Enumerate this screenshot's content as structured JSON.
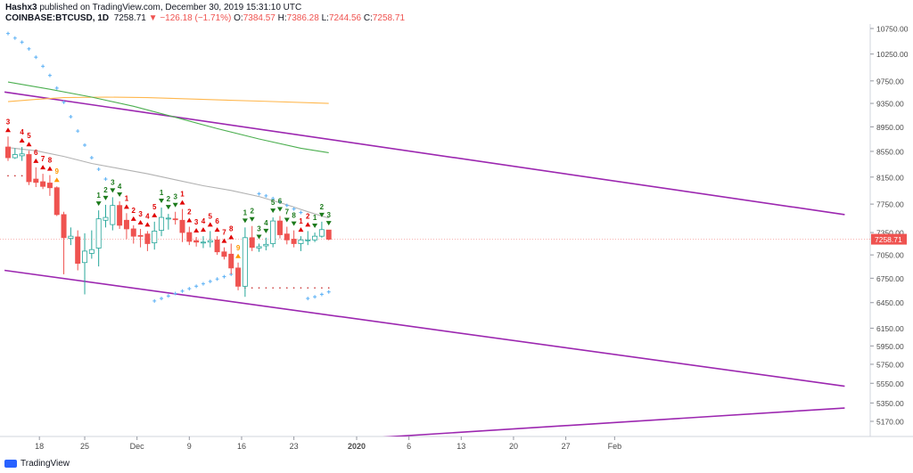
{
  "header": {
    "author": "Hashx3",
    "published_text": " published on TradingView.com, December 30, 2019 15:31:10 UTC",
    "symbol": "COINBASE:BTCUSD, 1D",
    "last": "7258.71",
    "change": "−126.18 (−1.71%)",
    "o_label": "O:",
    "o": "7384.57",
    "h_label": "H:",
    "h": "7386.28",
    "l_label": "L:",
    "l": "7244.56",
    "c_label": "C:",
    "c": "7258.71"
  },
  "footer": {
    "logo_text": "TradingView"
  },
  "colors": {
    "up": "#ffffff",
    "down": "#ef5350",
    "up_border": "#26a69a",
    "channel": "#9c27b0",
    "sar": "#64b5f6",
    "ma_gray": "#b2b2b2",
    "ma_green": "#4caf50",
    "ma_orange": "#ffb74d",
    "td_red": "#e00000",
    "td_green": "#1b7a1b",
    "td_orange": "#ff9800"
  },
  "chart_data": {
    "type": "candlestick",
    "y_scale": "log",
    "y_ticks": [
      "10750.00",
      "10250.00",
      "9750.00",
      "9350.00",
      "8950.00",
      "8550.00",
      "8150.00",
      "7750.00",
      "7350.00",
      "7050.00",
      "6750.00",
      "6450.00",
      "6150.00",
      "5950.00",
      "5750.00",
      "5550.00",
      "5350.00",
      "5170.00"
    ],
    "x_ticks": [
      "18",
      "25",
      "Dec",
      "9",
      "16",
      "23",
      "2020",
      "6",
      "13",
      "20",
      "27",
      "Feb"
    ],
    "last_price_label": "7258.71",
    "candles": [
      {
        "o": 8620,
        "h": 8790,
        "l": 8400,
        "c": 8450
      },
      {
        "o": 8450,
        "h": 8600,
        "l": 8430,
        "c": 8500
      },
      {
        "o": 8480,
        "h": 8620,
        "l": 8400,
        "c": 8510
      },
      {
        "o": 8500,
        "h": 8560,
        "l": 8030,
        "c": 8080
      },
      {
        "o": 8120,
        "h": 8300,
        "l": 8000,
        "c": 8070
      },
      {
        "o": 8080,
        "h": 8200,
        "l": 7970,
        "c": 8010
      },
      {
        "o": 8060,
        "h": 8180,
        "l": 7870,
        "c": 7990
      },
      {
        "o": 7990,
        "h": 8010,
        "l": 7580,
        "c": 7600
      },
      {
        "o": 7600,
        "h": 7640,
        "l": 6800,
        "c": 7280
      },
      {
        "o": 7270,
        "h": 7420,
        "l": 7180,
        "c": 7300
      },
      {
        "o": 7290,
        "h": 7380,
        "l": 6850,
        "c": 6940
      },
      {
        "o": 6950,
        "h": 7340,
        "l": 6550,
        "c": 7100
      },
      {
        "o": 7070,
        "h": 7380,
        "l": 7000,
        "c": 7120
      },
      {
        "o": 7140,
        "h": 7660,
        "l": 6900,
        "c": 7540
      },
      {
        "o": 7520,
        "h": 7740,
        "l": 7420,
        "c": 7560
      },
      {
        "o": 7460,
        "h": 7850,
        "l": 7380,
        "c": 7730
      },
      {
        "o": 7730,
        "h": 7790,
        "l": 7400,
        "c": 7450
      },
      {
        "o": 7520,
        "h": 7620,
        "l": 7260,
        "c": 7400
      },
      {
        "o": 7400,
        "h": 7450,
        "l": 7200,
        "c": 7300
      },
      {
        "o": 7310,
        "h": 7400,
        "l": 7150,
        "c": 7300
      },
      {
        "o": 7330,
        "h": 7370,
        "l": 7100,
        "c": 7200
      },
      {
        "o": 7210,
        "h": 7500,
        "l": 7120,
        "c": 7370
      },
      {
        "o": 7380,
        "h": 7700,
        "l": 7300,
        "c": 7560
      },
      {
        "o": 7540,
        "h": 7610,
        "l": 7390,
        "c": 7550
      },
      {
        "o": 7540,
        "h": 7640,
        "l": 7460,
        "c": 7530
      },
      {
        "o": 7520,
        "h": 7680,
        "l": 7220,
        "c": 7350
      },
      {
        "o": 7350,
        "h": 7430,
        "l": 7180,
        "c": 7230
      },
      {
        "o": 7240,
        "h": 7290,
        "l": 7160,
        "c": 7220
      },
      {
        "o": 7220,
        "h": 7300,
        "l": 7140,
        "c": 7220
      },
      {
        "o": 7220,
        "h": 7370,
        "l": 7150,
        "c": 7240
      },
      {
        "o": 7250,
        "h": 7300,
        "l": 7050,
        "c": 7090
      },
      {
        "o": 7090,
        "h": 7150,
        "l": 6990,
        "c": 7030
      },
      {
        "o": 7060,
        "h": 7200,
        "l": 6800,
        "c": 6880
      },
      {
        "o": 6880,
        "h": 6950,
        "l": 6600,
        "c": 6650
      },
      {
        "o": 6650,
        "h": 7420,
        "l": 6520,
        "c": 7280
      },
      {
        "o": 7280,
        "h": 7440,
        "l": 7100,
        "c": 7150
      },
      {
        "o": 7140,
        "h": 7200,
        "l": 7090,
        "c": 7160
      },
      {
        "o": 7170,
        "h": 7280,
        "l": 7110,
        "c": 7190
      },
      {
        "o": 7200,
        "h": 7560,
        "l": 7150,
        "c": 7510
      },
      {
        "o": 7510,
        "h": 7580,
        "l": 7270,
        "c": 7320
      },
      {
        "o": 7330,
        "h": 7430,
        "l": 7190,
        "c": 7250
      },
      {
        "o": 7260,
        "h": 7380,
        "l": 7150,
        "c": 7200
      },
      {
        "o": 7200,
        "h": 7300,
        "l": 7100,
        "c": 7250
      },
      {
        "o": 7240,
        "h": 7370,
        "l": 7180,
        "c": 7250
      },
      {
        "o": 7250,
        "h": 7350,
        "l": 7220,
        "c": 7300
      },
      {
        "o": 7300,
        "h": 7500,
        "l": 7280,
        "c": 7390
      },
      {
        "o": 7384.57,
        "h": 7386.28,
        "l": 7244.56,
        "c": 7258.71
      }
    ],
    "td_labels": [
      {
        "i": 0,
        "t": "3",
        "pos": "above",
        "c": "red"
      },
      {
        "i": 2,
        "t": "4",
        "pos": "above",
        "c": "red"
      },
      {
        "i": 3,
        "t": "5",
        "pos": "above",
        "c": "red"
      },
      {
        "i": 4,
        "t": "6",
        "pos": "above",
        "c": "red"
      },
      {
        "i": 5,
        "t": "7",
        "pos": "above",
        "c": "red"
      },
      {
        "i": 6,
        "t": "8",
        "pos": "above",
        "c": "red"
      },
      {
        "i": 7,
        "t": "9",
        "pos": "above",
        "c": "orange"
      },
      {
        "i": 13,
        "t": "1",
        "pos": "above",
        "c": "green"
      },
      {
        "i": 14,
        "t": "2",
        "pos": "above",
        "c": "green"
      },
      {
        "i": 15,
        "t": "3",
        "pos": "above",
        "c": "green"
      },
      {
        "i": 16,
        "t": "4",
        "pos": "above",
        "c": "green"
      },
      {
        "i": 17,
        "t": "1",
        "pos": "above",
        "c": "red"
      },
      {
        "i": 18,
        "t": "2",
        "pos": "above",
        "c": "red"
      },
      {
        "i": 19,
        "t": "3",
        "pos": "above",
        "c": "red"
      },
      {
        "i": 20,
        "t": "4",
        "pos": "above",
        "c": "red"
      },
      {
        "i": 21,
        "t": "5",
        "pos": "above",
        "c": "red"
      },
      {
        "i": 22,
        "t": "1",
        "pos": "above",
        "c": "green"
      },
      {
        "i": 23,
        "t": "2",
        "pos": "above",
        "c": "green"
      },
      {
        "i": 24,
        "t": "3",
        "pos": "above",
        "c": "green"
      },
      {
        "i": 25,
        "t": "1",
        "pos": "above",
        "c": "red"
      },
      {
        "i": 26,
        "t": "2",
        "pos": "above",
        "c": "red"
      },
      {
        "i": 27,
        "t": "3",
        "pos": "above",
        "c": "red"
      },
      {
        "i": 28,
        "t": "4",
        "pos": "above",
        "c": "red"
      },
      {
        "i": 29,
        "t": "5",
        "pos": "above",
        "c": "red"
      },
      {
        "i": 30,
        "t": "6",
        "pos": "above",
        "c": "red"
      },
      {
        "i": 31,
        "t": "7",
        "pos": "above",
        "c": "red"
      },
      {
        "i": 32,
        "t": "8",
        "pos": "above",
        "c": "red"
      },
      {
        "i": 33,
        "t": "9",
        "pos": "above",
        "c": "orange"
      },
      {
        "i": 34,
        "t": "1",
        "pos": "above",
        "c": "green"
      },
      {
        "i": 35,
        "t": "2",
        "pos": "above",
        "c": "green"
      },
      {
        "i": 36,
        "t": "3",
        "pos": "above",
        "c": "green"
      },
      {
        "i": 37,
        "t": "4",
        "pos": "above",
        "c": "green"
      },
      {
        "i": 38,
        "t": "5",
        "pos": "above",
        "c": "green"
      },
      {
        "i": 39,
        "t": "6",
        "pos": "above",
        "c": "green"
      },
      {
        "i": 40,
        "t": "7",
        "pos": "above",
        "c": "green"
      },
      {
        "i": 41,
        "t": "8",
        "pos": "above",
        "c": "green"
      },
      {
        "i": 42,
        "t": "1",
        "pos": "above",
        "c": "red"
      },
      {
        "i": 43,
        "t": "2",
        "pos": "above",
        "c": "red"
      },
      {
        "i": 44,
        "t": "1",
        "pos": "above",
        "c": "green"
      },
      {
        "i": 45,
        "t": "2",
        "pos": "above",
        "c": "green"
      },
      {
        "i": 46,
        "t": "3",
        "pos": "above",
        "c": "green"
      }
    ],
    "sar": [
      {
        "i": 0,
        "v": 10650
      },
      {
        "i": 1,
        "v": 10560
      },
      {
        "i": 2,
        "v": 10480
      },
      {
        "i": 3,
        "v": 10350
      },
      {
        "i": 4,
        "v": 10190
      },
      {
        "i": 5,
        "v": 10020
      },
      {
        "i": 6,
        "v": 9850
      },
      {
        "i": 7,
        "v": 9620
      },
      {
        "i": 8,
        "v": 9370
      },
      {
        "i": 9,
        "v": 9120
      },
      {
        "i": 10,
        "v": 8880
      },
      {
        "i": 11,
        "v": 8650
      },
      {
        "i": 12,
        "v": 8450
      },
      {
        "i": 13,
        "v": 8270
      },
      {
        "i": 14,
        "v": 8120
      },
      {
        "i": 21,
        "v": 6470
      },
      {
        "i": 22,
        "v": 6500
      },
      {
        "i": 23,
        "v": 6530
      },
      {
        "i": 24,
        "v": 6560
      },
      {
        "i": 25,
        "v": 6590
      },
      {
        "i": 26,
        "v": 6620
      },
      {
        "i": 27,
        "v": 6650
      },
      {
        "i": 28,
        "v": 6680
      },
      {
        "i": 29,
        "v": 6710
      },
      {
        "i": 30,
        "v": 6740
      },
      {
        "i": 31,
        "v": 6770
      },
      {
        "i": 32,
        "v": 6800
      },
      {
        "i": 33,
        "v": 6820
      },
      {
        "i": 34,
        "v": 6840
      },
      {
        "i": 36,
        "v": 7900
      },
      {
        "i": 37,
        "v": 7870
      },
      {
        "i": 38,
        "v": 7830
      },
      {
        "i": 39,
        "v": 7780
      },
      {
        "i": 40,
        "v": 7730
      },
      {
        "i": 41,
        "v": 7680
      },
      {
        "i": 42,
        "v": 7630
      },
      {
        "i": 43,
        "v": 6500
      },
      {
        "i": 44,
        "v": 6520
      },
      {
        "i": 45,
        "v": 6550
      },
      {
        "i": 46,
        "v": 6580
      }
    ],
    "ma_gray": [
      {
        "i": 0,
        "v": 8610
      },
      {
        "i": 4,
        "v": 8560
      },
      {
        "i": 8,
        "v": 8470
      },
      {
        "i": 12,
        "v": 8360
      },
      {
        "i": 16,
        "v": 8280
      },
      {
        "i": 20,
        "v": 8200
      },
      {
        "i": 24,
        "v": 8110
      },
      {
        "i": 28,
        "v": 8020
      },
      {
        "i": 32,
        "v": 7950
      },
      {
        "i": 36,
        "v": 7860
      },
      {
        "i": 40,
        "v": 7740
      },
      {
        "i": 43,
        "v": 7640
      },
      {
        "i": 46,
        "v": 7550
      }
    ],
    "ma_green": [
      {
        "i": 0,
        "v": 9730
      },
      {
        "i": 6,
        "v": 9600
      },
      {
        "i": 12,
        "v": 9460
      },
      {
        "i": 18,
        "v": 9300
      },
      {
        "i": 24,
        "v": 9110
      },
      {
        "i": 30,
        "v": 8920
      },
      {
        "i": 36,
        "v": 8750
      },
      {
        "i": 42,
        "v": 8600
      },
      {
        "i": 46,
        "v": 8530
      }
    ],
    "ma_orange": [
      {
        "i": 0,
        "v": 9380
      },
      {
        "i": 4,
        "v": 9420
      },
      {
        "i": 8,
        "v": 9450
      },
      {
        "i": 14,
        "v": 9460
      },
      {
        "i": 20,
        "v": 9450
      },
      {
        "i": 28,
        "v": 9420
      },
      {
        "i": 36,
        "v": 9390
      },
      {
        "i": 46,
        "v": 9350
      }
    ],
    "channel_lines": [
      {
        "from": {
          "i": -0.5,
          "v": 9550
        },
        "to": {
          "i": 120,
          "v": 7600
        }
      },
      {
        "from": {
          "i": -0.5,
          "v": 6850
        },
        "to": {
          "i": 120,
          "v": 5520
        }
      },
      {
        "from": {
          "i": 49,
          "v": 5000
        },
        "to": {
          "i": 120,
          "v": 5300
        }
      }
    ],
    "dotted_levels": [
      {
        "from_i": 0,
        "to_i": 3,
        "v": 8170
      },
      {
        "from_i": 34,
        "to_i": 46,
        "v": 6630
      }
    ],
    "x_tick_index": {
      "18": 4.5,
      "25": 11,
      "Dec": 18.5,
      "9": 26,
      "16": 33.5,
      "23": 41,
      "2020": 50,
      "6": 57.5,
      "13": 65,
      "20": 72.5,
      "27": 80,
      "Feb": 87
    }
  }
}
